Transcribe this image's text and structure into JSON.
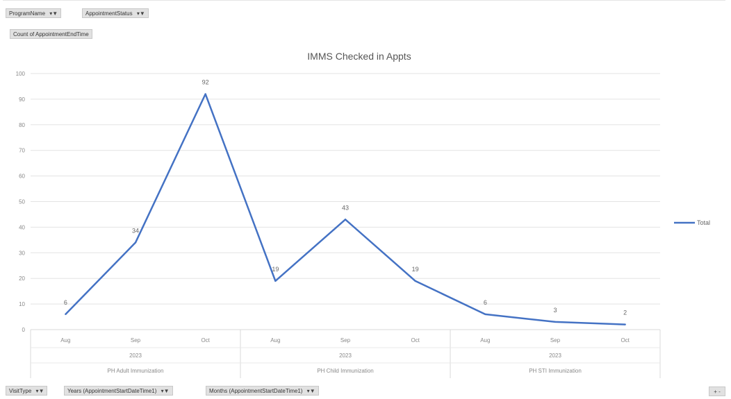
{
  "pivot": {
    "top_filters": [
      {
        "label": "ProgramName"
      },
      {
        "label": "AppointmentStatus"
      }
    ],
    "value_field": "Count of AppointmentEndTime",
    "axis_fields": [
      {
        "label": "VisitType"
      },
      {
        "label": "Years (AppointmentStartDateTime1)"
      },
      {
        "label": "Months (AppointmentStartDateTime1)"
      }
    ],
    "resize_label": "+ -"
  },
  "chart_data": {
    "type": "line",
    "title": "IMMS Checked in Appts",
    "ylim": [
      0,
      100
    ],
    "yticks": [
      0,
      10,
      20,
      30,
      40,
      50,
      60,
      70,
      80,
      90,
      100
    ],
    "grid": true,
    "legend_position": "right",
    "categories": [
      "Aug",
      "Sep",
      "Oct",
      "Aug",
      "Sep",
      "Oct",
      "Aug",
      "Sep",
      "Oct"
    ],
    "year_labels": [
      "2023",
      "2023",
      "2023"
    ],
    "group_labels": [
      "PH Adult Immunization",
      "PH Child Immunization",
      "PH STI Immunization"
    ],
    "series": [
      {
        "name": "Total",
        "values": [
          6,
          34,
          92,
          19,
          43,
          19,
          6,
          3,
          2
        ],
        "color": "#4472c4"
      }
    ],
    "data_labels": [
      "6",
      "34",
      "92",
      "19",
      "43",
      "19",
      "6",
      "3",
      "2"
    ]
  }
}
